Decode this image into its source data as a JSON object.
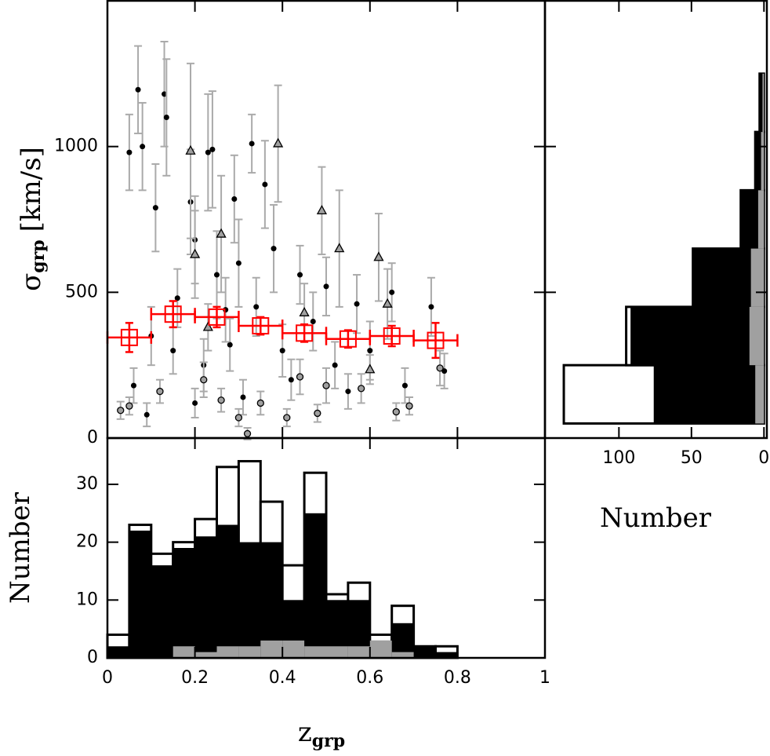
{
  "chart_data": [
    {
      "type": "scatter",
      "ylabel": {
        "main": "σ",
        "sub": "grp",
        "unit": "[km/s]"
      },
      "xlim": [
        0,
        1
      ],
      "ylim": [
        0,
        1500
      ],
      "xticks": [
        0,
        0.2,
        0.4,
        0.6,
        0.8,
        1
      ],
      "yticks": [
        0,
        500,
        1000
      ],
      "errorcolor": "#aaaaaa",
      "series": [
        {
          "marker": "circle",
          "color": "#000000",
          "x": [
            0.05,
            0.07,
            0.08,
            0.13,
            0.135,
            0.23,
            0.24,
            0.33,
            0.36,
            0.29,
            0.11,
            0.19,
            0.2,
            0.25,
            0.3,
            0.38,
            0.44,
            0.5,
            0.57,
            0.65,
            0.74,
            0.77,
            0.06,
            0.1,
            0.15,
            0.22,
            0.28,
            0.34,
            0.4,
            0.47,
            0.52,
            0.6,
            0.68,
            0.09,
            0.2,
            0.31,
            0.42,
            0.55,
            0.16,
            0.27
          ],
          "values": [
            980,
            1195,
            1000,
            1180,
            1100,
            980,
            990,
            1010,
            870,
            820,
            790,
            810,
            680,
            560,
            600,
            650,
            560,
            520,
            460,
            500,
            450,
            230,
            180,
            350,
            300,
            250,
            320,
            450,
            300,
            400,
            250,
            300,
            180,
            80,
            120,
            140,
            200,
            160,
            480,
            440
          ],
          "yerr": [
            130,
            150,
            150,
            180,
            200,
            200,
            200,
            100,
            150,
            150,
            150,
            180,
            150,
            150,
            150,
            150,
            100,
            100,
            100,
            100,
            100,
            60,
            60,
            100,
            80,
            90,
            90,
            100,
            90,
            100,
            80,
            100,
            60,
            40,
            50,
            60,
            70,
            60,
            100,
            110
          ]
        },
        {
          "marker": "open-circle",
          "color": "#a0a0a0",
          "x": [
            0.03,
            0.05,
            0.12,
            0.22,
            0.26,
            0.3,
            0.32,
            0.35,
            0.41,
            0.44,
            0.48,
            0.5,
            0.58,
            0.66,
            0.69,
            0.76
          ],
          "values": [
            95,
            110,
            160,
            200,
            130,
            70,
            15,
            120,
            70,
            210,
            85,
            180,
            170,
            90,
            110,
            240
          ],
          "yerr": [
            30,
            30,
            40,
            60,
            40,
            30,
            20,
            40,
            30,
            60,
            30,
            60,
            50,
            30,
            30,
            60
          ]
        },
        {
          "marker": "triangle",
          "color": "#a0a0a0",
          "x": [
            0.26,
            0.19,
            0.2,
            0.39,
            0.49,
            0.62,
            0.64,
            0.53,
            0.45,
            0.23,
            0.6
          ],
          "values": [
            700,
            985,
            630,
            1010,
            780,
            620,
            460,
            650,
            430,
            380,
            235
          ],
          "yerr": [
            200,
            300,
            150,
            200,
            150,
            150,
            120,
            200,
            100,
            80,
            50
          ]
        },
        {
          "marker": "square",
          "color": "#ff0000",
          "x": [
            0.05,
            0.15,
            0.25,
            0.35,
            0.45,
            0.55,
            0.65,
            0.75
          ],
          "values": [
            345,
            425,
            415,
            385,
            360,
            340,
            350,
            335
          ],
          "yerr": [
            50,
            45,
            35,
            30,
            30,
            30,
            35,
            60
          ],
          "xerr": [
            0.05,
            0.05,
            0.05,
            0.05,
            0.05,
            0.05,
            0.05,
            0.05
          ]
        }
      ]
    },
    {
      "type": "histogram",
      "xlabel": {
        "main": "z",
        "sub": "grp"
      },
      "ylabel": "Number",
      "xlim": [
        0,
        1
      ],
      "ylim": [
        0,
        38
      ],
      "xticks": [
        0,
        0.2,
        0.4,
        0.6,
        0.8,
        1
      ],
      "yticks": [
        0,
        10,
        20,
        30
      ],
      "bins": [
        0,
        0.05,
        0.1,
        0.15,
        0.2,
        0.25,
        0.3,
        0.35,
        0.4,
        0.45,
        0.5,
        0.55,
        0.6,
        0.65,
        0.7,
        0.75,
        0.8,
        0.85,
        0.9,
        0.95,
        1
      ],
      "series": [
        {
          "color": "#ffffff",
          "edgecolor": "#000000",
          "values": [
            4,
            23,
            18,
            20,
            24,
            33,
            34,
            27,
            16,
            32,
            11,
            13,
            4,
            9,
            2,
            2,
            0,
            0,
            0,
            0
          ]
        },
        {
          "color": "#000000",
          "values": [
            2,
            22,
            16,
            19,
            21,
            23,
            20,
            20,
            10,
            25,
            10,
            10,
            3,
            6,
            2,
            1,
            0,
            0,
            0,
            0
          ]
        },
        {
          "color": "#a0a0a0",
          "values": [
            0,
            0,
            0,
            2,
            1,
            2,
            2,
            3,
            3,
            2,
            2,
            2,
            3,
            1,
            0,
            0,
            0,
            0,
            0,
            0
          ]
        }
      ]
    },
    {
      "type": "histogram",
      "orientation": "horizontal",
      "xlabel": "Number",
      "xlim": [
        151,
        -2
      ],
      "ylim": [
        0,
        1500
      ],
      "xticks": [
        100,
        50,
        0
      ],
      "yticks": [
        0,
        500,
        1000
      ],
      "bins": [
        50,
        250,
        450,
        650,
        850,
        1050,
        1250
      ],
      "series": [
        {
          "color": "#ffffff",
          "edgecolor": "#000000",
          "values": [
            138,
            95,
            49,
            16,
            6,
            3
          ]
        },
        {
          "color": "#000000",
          "values": [
            76,
            92,
            49,
            16,
            6,
            3
          ]
        },
        {
          "color": "#a0a0a0",
          "values": [
            6,
            10,
            9,
            4,
            2,
            1
          ]
        }
      ]
    }
  ]
}
